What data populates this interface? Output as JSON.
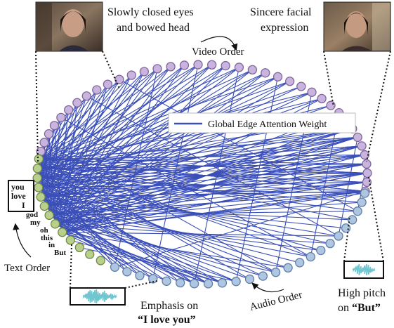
{
  "legend": {
    "label": "Global Edge Attention Weight"
  },
  "order_labels": {
    "video": "Video Order",
    "text": "Text Order",
    "audio": "Audio Order"
  },
  "callouts": {
    "left_face": [
      "Slowly closed eyes",
      "and bowed head"
    ],
    "right_face": [
      "Sincere facial",
      "expression"
    ],
    "emphasis": {
      "line1": "Emphasis on",
      "line2": "“I love you”"
    },
    "pitch": {
      "line1": "High pitch",
      "line2_prefix": "on ",
      "line2_bold": "“But”"
    }
  },
  "text_words": [
    "you",
    "love",
    "I",
    "god",
    "my",
    "oh",
    "this",
    "in",
    "But"
  ],
  "colors": {
    "edge": "#3b4fb8",
    "video_fill": "#c9b3df",
    "video_stroke": "#7f6699",
    "text_fill": "#b9cf8c",
    "text_stroke": "#6f8a45",
    "audio_fill": "#afc6e2",
    "audio_stroke": "#5f7ea3"
  }
}
